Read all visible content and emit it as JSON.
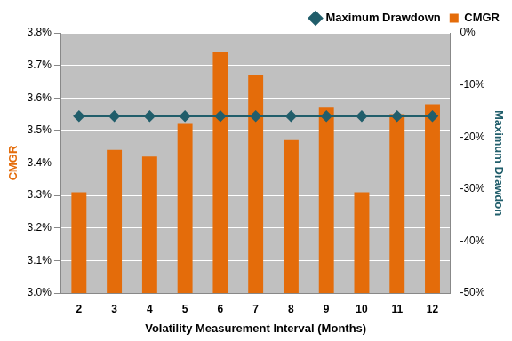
{
  "chart_data": {
    "type": "bar",
    "categories": [
      "2",
      "3",
      "4",
      "5",
      "6",
      "7",
      "8",
      "9",
      "10",
      "11",
      "12"
    ],
    "x_label": "Volatility Measurement Interval (Months)",
    "y_label": "CMGR",
    "y2_label": "Maximum Drawdon",
    "series": [
      {
        "name": "CMGR",
        "type": "bar",
        "color": "#E46C0A",
        "values": [
          3.31,
          3.44,
          3.42,
          3.52,
          3.74,
          3.67,
          3.47,
          3.57,
          3.31,
          3.55,
          3.58
        ]
      },
      {
        "name": "Maximum Drawdown",
        "type": "line",
        "color": "#215E6B",
        "marker": "diamond",
        "axis": "y2",
        "values": [
          -16,
          -16,
          -16,
          -16,
          -16,
          -16,
          -16,
          -16,
          -16,
          -16,
          -16
        ]
      }
    ],
    "ylim": [
      3.0,
      3.8
    ],
    "yticks": [
      {
        "value": 3.0,
        "label": "3.0%"
      },
      {
        "value": 3.1,
        "label": "3.1%"
      },
      {
        "value": 3.2,
        "label": "3.2%"
      },
      {
        "value": 3.3,
        "label": "3.3%"
      },
      {
        "value": 3.4,
        "label": "3.4%"
      },
      {
        "value": 3.5,
        "label": "3.5%"
      },
      {
        "value": 3.6,
        "label": "3.6%"
      },
      {
        "value": 3.7,
        "label": "3.7%"
      },
      {
        "value": 3.8,
        "label": "3.8%"
      }
    ],
    "y2lim": [
      -50,
      0
    ],
    "y2ticks": [
      {
        "value": -50,
        "label": "-50%"
      },
      {
        "value": -40,
        "label": "-40%"
      },
      {
        "value": -30,
        "label": "-30%"
      },
      {
        "value": -20,
        "label": "-20%"
      },
      {
        "value": -10,
        "label": "-10%"
      },
      {
        "value": 0,
        "label": "0%"
      }
    ],
    "grid": true,
    "legend": "top"
  }
}
